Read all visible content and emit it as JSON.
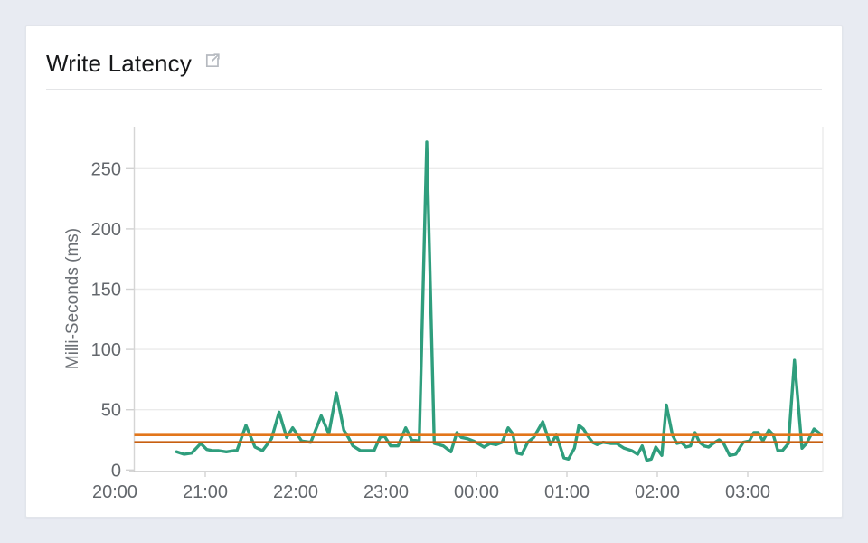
{
  "card": {
    "title": "Write Latency",
    "title_icon": "external-link-icon"
  },
  "chart_data": {
    "type": "line",
    "title": "Write Latency",
    "xlabel": "",
    "ylabel": "Milli-Seconds (ms)",
    "x_tick_labels": [
      "20:00",
      "21:00",
      "22:00",
      "23:00",
      "00:00",
      "01:00",
      "02:00",
      "03:00"
    ],
    "y_tick_labels": [
      0,
      50,
      100,
      150,
      200,
      250
    ],
    "ylim": [
      0,
      285
    ],
    "x_domain_minutes_from_20_00": [
      0,
      470
    ],
    "grid": "horizontal-only",
    "legend": "none",
    "series": [
      {
        "name": "write-latency-ms",
        "color": "#2f9e7d",
        "points": [
          [
            41,
            15
          ],
          [
            46,
            13
          ],
          [
            51,
            14
          ],
          [
            57,
            22
          ],
          [
            61,
            17
          ],
          [
            65,
            16
          ],
          [
            69,
            16
          ],
          [
            74,
            15
          ],
          [
            79,
            16
          ],
          [
            81,
            16
          ],
          [
            87,
            37
          ],
          [
            93,
            19
          ],
          [
            98,
            16
          ],
          [
            104,
            26
          ],
          [
            109,
            48
          ],
          [
            114,
            27
          ],
          [
            118,
            35
          ],
          [
            124,
            24
          ],
          [
            130,
            23
          ],
          [
            137,
            45
          ],
          [
            142,
            30
          ],
          [
            147,
            64
          ],
          [
            152,
            33
          ],
          [
            155,
            27
          ],
          [
            158,
            20
          ],
          [
            163,
            16
          ],
          [
            168,
            16
          ],
          [
            172,
            16
          ],
          [
            176,
            27
          ],
          [
            179,
            28
          ],
          [
            183,
            20
          ],
          [
            188,
            20
          ],
          [
            193,
            35
          ],
          [
            197,
            25
          ],
          [
            202,
            24
          ],
          [
            207,
            272
          ],
          [
            212,
            22
          ],
          [
            218,
            20
          ],
          [
            223,
            15
          ],
          [
            227,
            31
          ],
          [
            230,
            27
          ],
          [
            234,
            26
          ],
          [
            238,
            24
          ],
          [
            241,
            22
          ],
          [
            245,
            19
          ],
          [
            249,
            22
          ],
          [
            253,
            21
          ],
          [
            257,
            23
          ],
          [
            261,
            35
          ],
          [
            264,
            30
          ],
          [
            267,
            14
          ],
          [
            270,
            13
          ],
          [
            274,
            23
          ],
          [
            278,
            27
          ],
          [
            284,
            40
          ],
          [
            289,
            21
          ],
          [
            293,
            29
          ],
          [
            298,
            10
          ],
          [
            301,
            9
          ],
          [
            305,
            18
          ],
          [
            308,
            37
          ],
          [
            311,
            34
          ],
          [
            314,
            28
          ],
          [
            317,
            23
          ],
          [
            320,
            21
          ],
          [
            324,
            23
          ],
          [
            329,
            22
          ],
          [
            333,
            22
          ],
          [
            338,
            18
          ],
          [
            343,
            16
          ],
          [
            347,
            13
          ],
          [
            350,
            20
          ],
          [
            353,
            8
          ],
          [
            356,
            9
          ],
          [
            359,
            19
          ],
          [
            363,
            12
          ],
          [
            366,
            54
          ],
          [
            370,
            29
          ],
          [
            373,
            22
          ],
          [
            376,
            23
          ],
          [
            379,
            19
          ],
          [
            382,
            20
          ],
          [
            385,
            31
          ],
          [
            388,
            23
          ],
          [
            391,
            20
          ],
          [
            394,
            19
          ],
          [
            397,
            22
          ],
          [
            401,
            25
          ],
          [
            404,
            22
          ],
          [
            408,
            12
          ],
          [
            412,
            13
          ],
          [
            417,
            23
          ],
          [
            421,
            24
          ],
          [
            424,
            31
          ],
          [
            427,
            31
          ],
          [
            430,
            24
          ],
          [
            434,
            33
          ],
          [
            437,
            29
          ],
          [
            440,
            16
          ],
          [
            443,
            16
          ],
          [
            447,
            22
          ],
          [
            451,
            91
          ],
          [
            456,
            18
          ],
          [
            459,
            22
          ],
          [
            464,
            34
          ],
          [
            468,
            30
          ]
        ]
      }
    ],
    "reference_lines": [
      {
        "name": "upper-threshold",
        "value": 29,
        "color": "#e2761b"
      },
      {
        "name": "lower-threshold",
        "value": 23,
        "color": "#c85f10"
      }
    ],
    "colors": {
      "line": "#2f9e7d",
      "grid": "#ebebeb",
      "axis": "#d5d5d5",
      "baseline": "#c8c8c8",
      "tick": "#d2d2d2",
      "tick_text": "#63676c",
      "ylabel_text": "#6b6f74"
    }
  }
}
